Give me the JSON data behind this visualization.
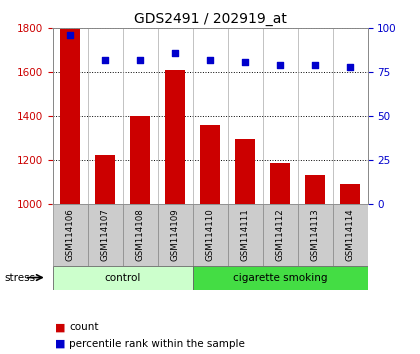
{
  "title": "GDS2491 / 202919_at",
  "samples": [
    "GSM114106",
    "GSM114107",
    "GSM114108",
    "GSM114109",
    "GSM114110",
    "GSM114111",
    "GSM114112",
    "GSM114113",
    "GSM114114"
  ],
  "counts": [
    1795,
    1220,
    1400,
    1610,
    1360,
    1295,
    1185,
    1130,
    1090
  ],
  "percentiles": [
    96,
    82,
    82,
    86,
    82,
    81,
    79,
    79,
    78
  ],
  "ylim_left": [
    1000,
    1800
  ],
  "ylim_right": [
    0,
    100
  ],
  "yticks_left": [
    1000,
    1200,
    1400,
    1600,
    1800
  ],
  "yticks_right": [
    0,
    25,
    50,
    75,
    100
  ],
  "groups": [
    {
      "label": "control",
      "indices": [
        0,
        1,
        2,
        3
      ],
      "color": "#ccffcc"
    },
    {
      "label": "cigarette smoking",
      "indices": [
        4,
        5,
        6,
        7,
        8
      ],
      "color": "#44dd44"
    }
  ],
  "bar_color": "#cc0000",
  "dot_color": "#0000cc",
  "bar_width": 0.55,
  "stress_label": "stress"
}
